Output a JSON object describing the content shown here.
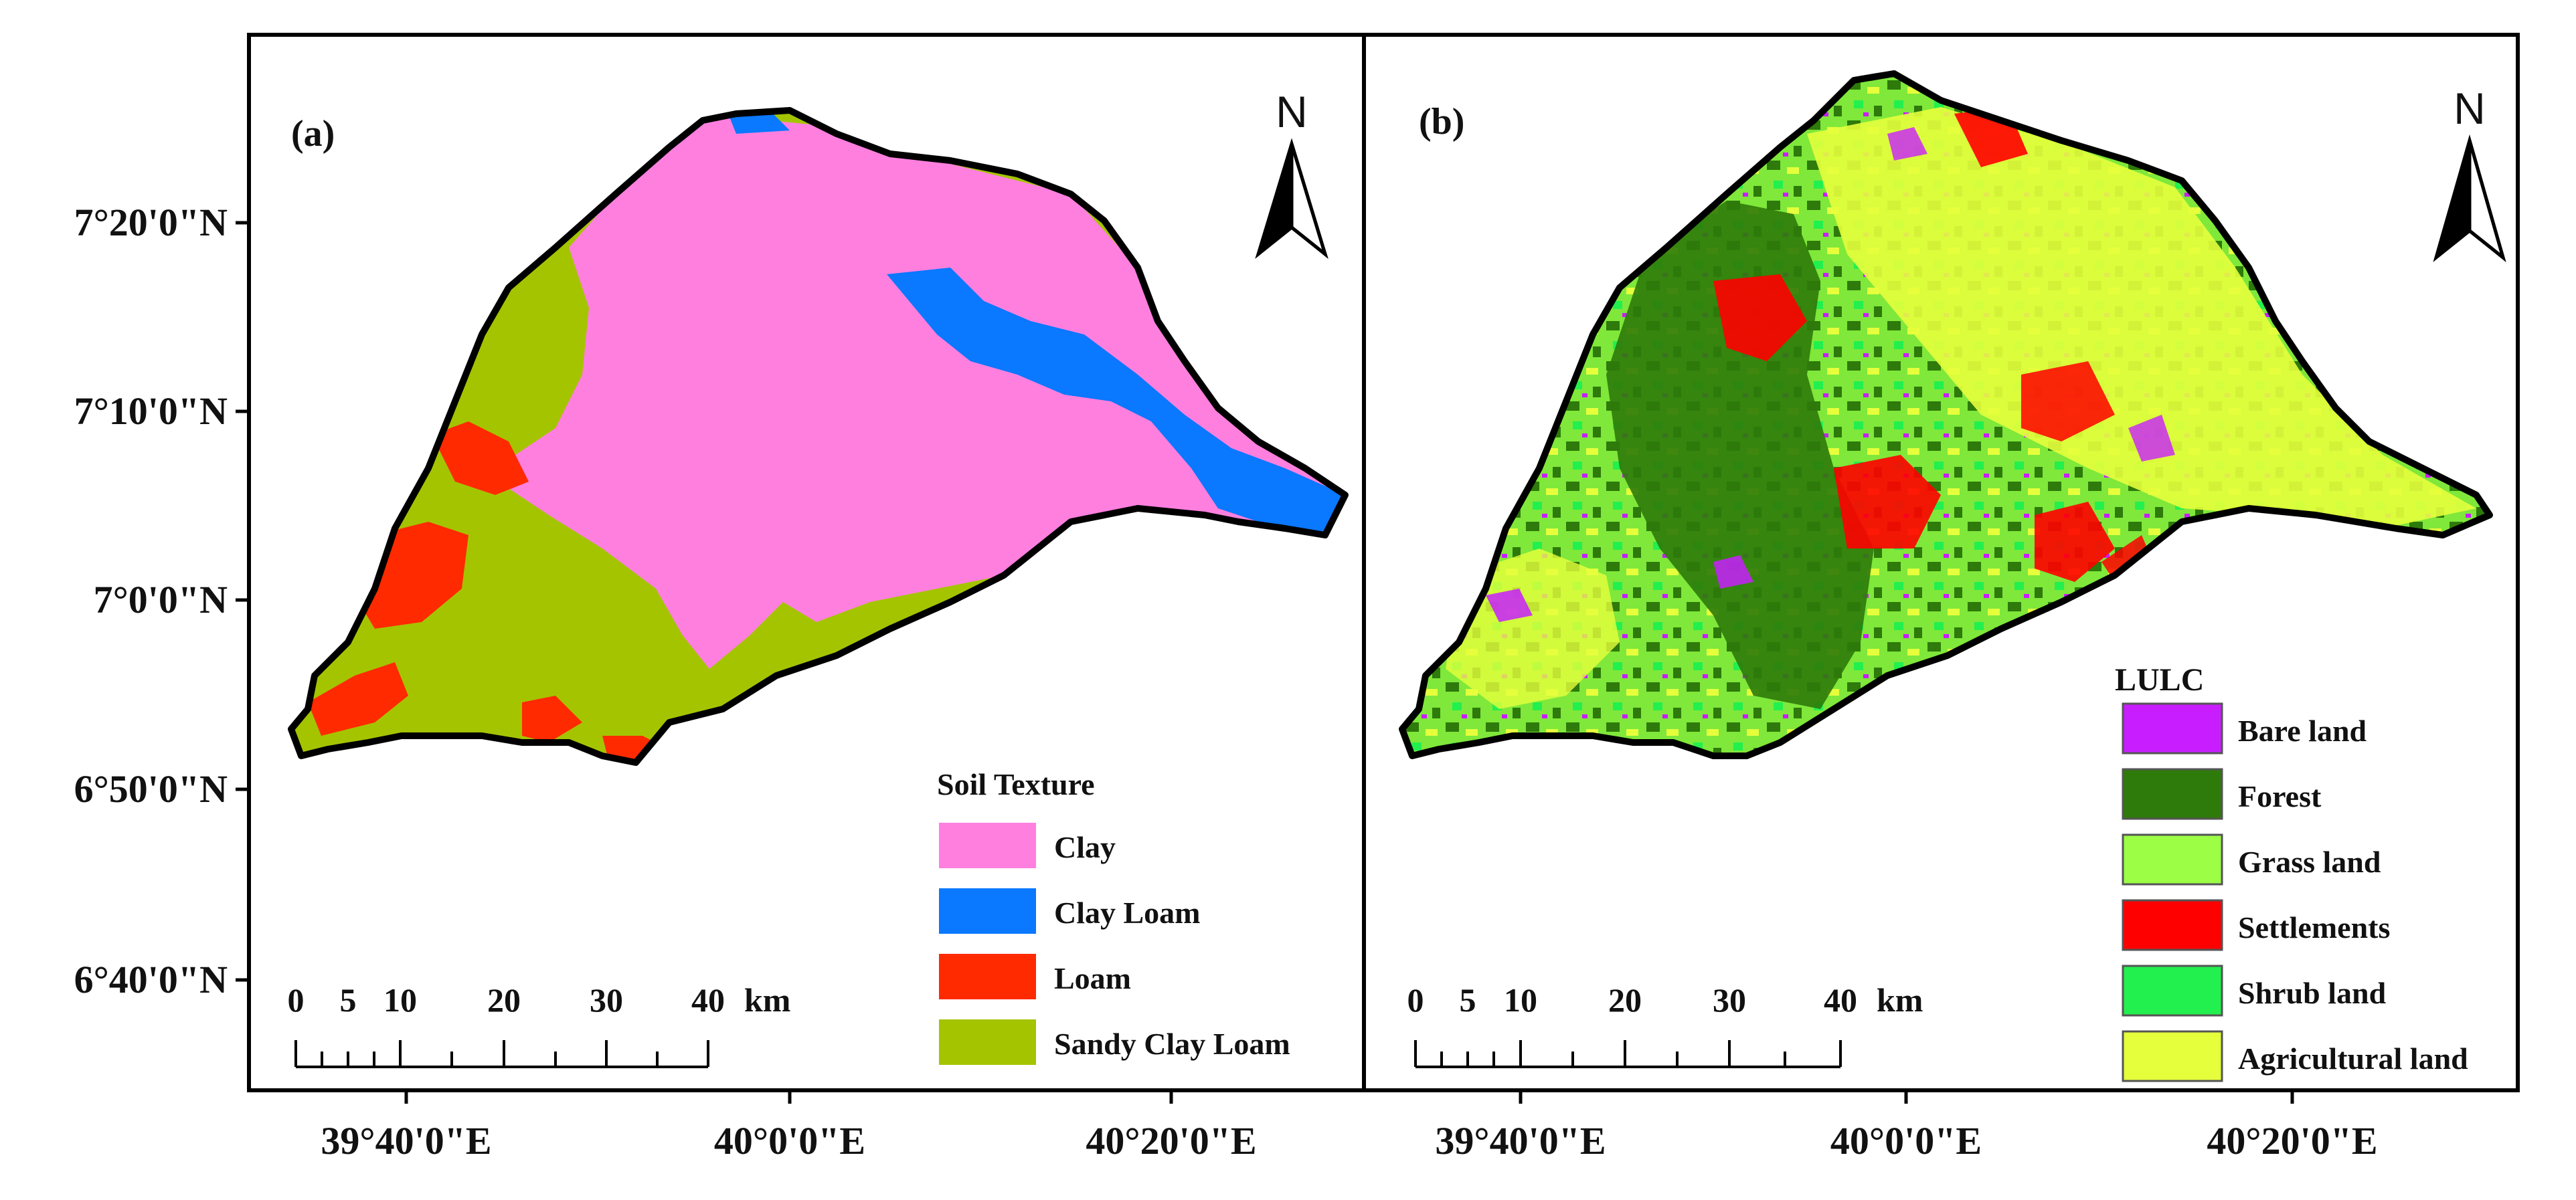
{
  "panel_a": {
    "tag": "(a)",
    "north_label": "N",
    "legend": {
      "title": "Soil Texture",
      "items": [
        {
          "label": "Clay",
          "color": "#ff7fdf"
        },
        {
          "label": "Clay Loam",
          "color": "#0a78ff"
        },
        {
          "label": "Loam",
          "color": "#ff2a00"
        },
        {
          "label": "Sandy Clay Loam",
          "color": "#a5c400"
        }
      ]
    },
    "scale_bar": {
      "ticks": [
        "0",
        "5",
        "10",
        "20",
        "30",
        "40"
      ],
      "unit": "km"
    }
  },
  "panel_b": {
    "tag": "(b)",
    "north_label": "N",
    "legend": {
      "title": "LULC",
      "items": [
        {
          "label": "Bare land",
          "color": "#c81eff"
        },
        {
          "label": "Forest",
          "color": "#2e7a0a"
        },
        {
          "label": "Grass land",
          "color": "#9cff46"
        },
        {
          "label": "Settlements",
          "color": "#ff0000"
        },
        {
          "label": "Shrub land",
          "color": "#22f04e"
        },
        {
          "label": "Agricultural land",
          "color": "#e6ff3c"
        }
      ]
    },
    "scale_bar": {
      "ticks": [
        "0",
        "5",
        "10",
        "20",
        "30",
        "40"
      ],
      "unit": "km"
    }
  },
  "axes": {
    "latitude_labels": [
      "7°20'0\"N",
      "7°10'0\"N",
      "7°0'0\"N",
      "6°50'0\"N",
      "6°40'0\"N"
    ],
    "longitude_labels": [
      "39°40'0\"E",
      "40°0'0\"E",
      "40°20'0\"E",
      "39°40'0\"E",
      "40°0'0\"E",
      "40°20'0\"E"
    ]
  }
}
